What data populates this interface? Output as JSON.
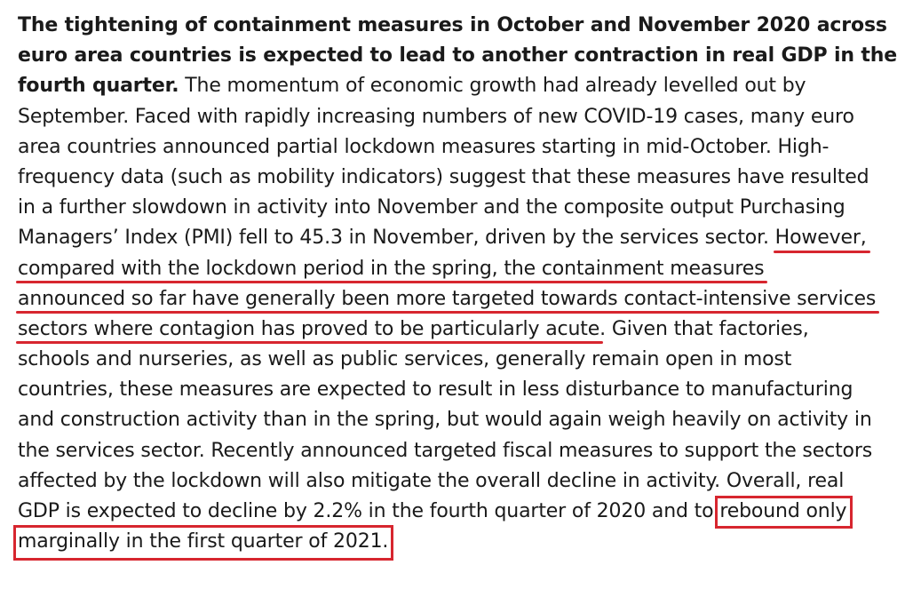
{
  "paragraph": {
    "lines": [
      {
        "bold": "The tightening of containment measures in October and November 2020 across"
      },
      {
        "bold": "euro area countries is expected to lead to another contraction in real GDP in the"
      },
      {
        "bold": "fourth quarter.",
        "text": " The momentum of economic growth had already levelled out by"
      },
      {
        "text": "September. Faced with rapidly increasing numbers of new COVID-19 cases, many euro"
      },
      {
        "text": "area countries announced partial lockdown measures starting in mid-October. High-"
      },
      {
        "text": "frequency data (such as mobility indicators) suggest that these measures have resulted"
      },
      {
        "text": "in a further slowdown in activity into November and the composite output Purchasing"
      },
      {
        "text": "Managers’ Index (PMI) fell to 45.3 in November, driven by the services sector. ",
        "highlight": "However,"
      },
      {
        "highlight": "compared with the lockdown period in the spring, the containment measures"
      },
      {
        "highlight": "announced so far have generally been more targeted towards contact-intensive services"
      },
      {
        "highlight": "sectors where contagion has proved to be particularly acute",
        "text": ". Given that factories,"
      },
      {
        "text": "schools and nurseries, as well as public services, generally remain open in most"
      },
      {
        "text": "countries, these measures are expected to result in less disturbance to manufacturing"
      },
      {
        "text": "and construction activity than in the spring, but would again weigh heavily on activity in"
      },
      {
        "text": "the services sector. Recently announced targeted fiscal measures to support the sectors"
      },
      {
        "text": "affected by the lockdown will also mitigate the overall decline in activity. Overall, real"
      },
      {
        "text": "GDP is expected to decline by 2.2% in the fourth quarter of 2020 and to ",
        "boxed": "rebound only"
      },
      {
        "boxed": "marginally in the first quarter of 2021."
      }
    ]
  },
  "colors": {
    "text": "#1a1a1a",
    "annotation": "#d7262f"
  }
}
